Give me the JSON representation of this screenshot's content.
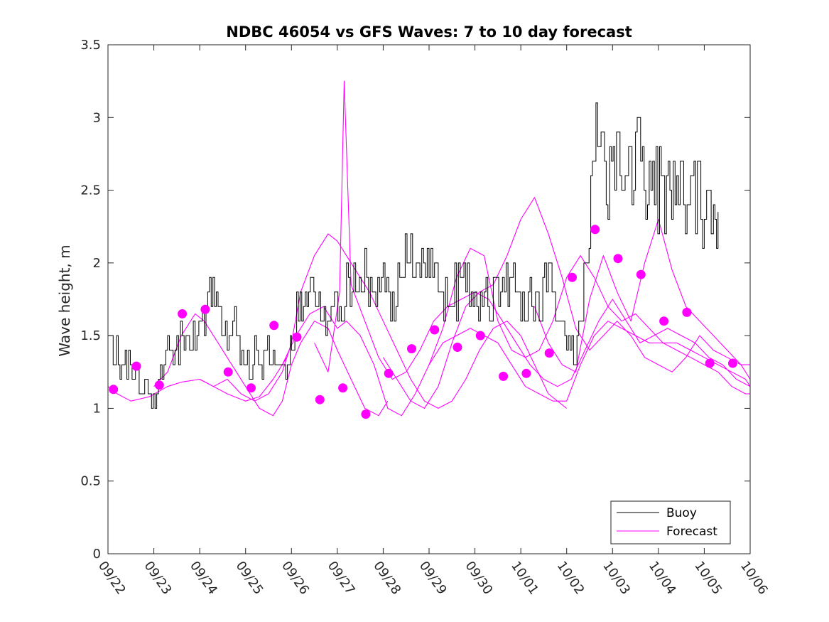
{
  "chart_data": {
    "type": "line",
    "title": "NDBC 46054 vs GFS Waves: 7 to 10 day forecast",
    "xlabel": "",
    "ylabel": "Wave height, m",
    "xlim": [
      0,
      14
    ],
    "ylim": [
      0,
      3.5
    ],
    "x_tick_labels": [
      "09/22",
      "09/23",
      "09/24",
      "09/25",
      "09/26",
      "09/27",
      "09/28",
      "09/29",
      "09/30",
      "10/01",
      "10/02",
      "10/03",
      "10/04",
      "10/05",
      "10/06"
    ],
    "y_ticks": [
      0,
      0.5,
      1,
      1.5,
      2,
      2.5,
      3,
      3.5
    ],
    "y_tick_labels": [
      "0",
      "0.5",
      "1",
      "1.5",
      "2",
      "2.5",
      "3",
      "3.5"
    ],
    "colors": {
      "buoy": "#000000",
      "forecast": "#ff00ff",
      "axes": "#262626",
      "background": "#ffffff"
    },
    "legend": {
      "position": "bottom-right",
      "entries": [
        {
          "label": "Buoy",
          "color": "#000000"
        },
        {
          "label": "Forecast",
          "color": "#ff00ff"
        }
      ]
    },
    "buoy_anchors": [
      [
        0.0,
        1.45
      ],
      [
        0.15,
        1.4
      ],
      [
        0.3,
        1.35
      ],
      [
        0.45,
        1.25
      ],
      [
        0.6,
        1.2
      ],
      [
        0.8,
        1.12
      ],
      [
        0.95,
        1.05
      ],
      [
        1.1,
        1.2
      ],
      [
        1.3,
        1.45
      ],
      [
        1.5,
        1.42
      ],
      [
        1.7,
        1.48
      ],
      [
        1.9,
        1.5
      ],
      [
        2.1,
        1.62
      ],
      [
        2.25,
        1.85
      ],
      [
        2.4,
        1.65
      ],
      [
        2.6,
        1.5
      ],
      [
        2.8,
        1.55
      ],
      [
        3.0,
        1.3
      ],
      [
        3.2,
        1.35
      ],
      [
        3.4,
        1.32
      ],
      [
        3.6,
        1.4
      ],
      [
        3.8,
        1.25
      ],
      [
        3.95,
        1.3
      ],
      [
        4.0,
        1.45
      ],
      [
        4.15,
        1.72
      ],
      [
        4.3,
        1.78
      ],
      [
        4.45,
        1.8
      ],
      [
        4.6,
        1.85
      ],
      [
        4.75,
        1.55
      ],
      [
        4.9,
        1.7
      ],
      [
        5.05,
        1.6
      ],
      [
        5.2,
        1.85
      ],
      [
        5.4,
        1.95
      ],
      [
        5.6,
        1.9
      ],
      [
        5.8,
        1.85
      ],
      [
        6.0,
        1.95
      ],
      [
        6.2,
        1.65
      ],
      [
        6.4,
        1.95
      ],
      [
        6.6,
        2.05
      ],
      [
        6.8,
        1.95
      ],
      [
        7.0,
        2.05
      ],
      [
        7.2,
        1.9
      ],
      [
        7.4,
        1.8
      ],
      [
        7.6,
        1.8
      ],
      [
        7.8,
        1.85
      ],
      [
        8.0,
        1.7
      ],
      [
        8.2,
        1.9
      ],
      [
        8.4,
        1.75
      ],
      [
        8.6,
        1.8
      ],
      [
        8.8,
        1.9
      ],
      [
        9.0,
        1.75
      ],
      [
        9.2,
        1.85
      ],
      [
        9.4,
        1.7
      ],
      [
        9.6,
        1.9
      ],
      [
        9.8,
        1.6
      ],
      [
        10.0,
        1.5
      ],
      [
        10.15,
        1.4
      ],
      [
        10.3,
        1.55
      ],
      [
        10.45,
        2.2
      ],
      [
        10.6,
        2.8
      ],
      [
        10.75,
        2.9
      ],
      [
        10.9,
        2.6
      ],
      [
        11.05,
        2.75
      ],
      [
        11.2,
        2.7
      ],
      [
        11.35,
        2.55
      ],
      [
        11.5,
        2.85
      ],
      [
        11.65,
        2.6
      ],
      [
        11.8,
        2.45
      ],
      [
        11.95,
        2.5
      ],
      [
        12.1,
        2.45
      ],
      [
        12.25,
        2.55
      ],
      [
        12.4,
        2.65
      ],
      [
        12.55,
        2.45
      ],
      [
        12.7,
        2.35
      ],
      [
        12.85,
        2.5
      ],
      [
        13.0,
        2.3
      ],
      [
        13.1,
        2.35
      ],
      [
        13.2,
        2.5
      ],
      [
        13.3,
        2.35
      ]
    ],
    "forecast_series": [
      {
        "name": "forecast-a",
        "x": [
          0,
          0.2,
          0.5,
          0.9,
          1.3,
          1.6,
          2.0,
          2.3,
          2.6,
          3.0,
          3.3,
          3.6,
          3.9
        ],
        "values": [
          1.15,
          1.1,
          1.05,
          1.08,
          1.15,
          1.18,
          1.2,
          1.15,
          1.1,
          1.05,
          1.08,
          1.2,
          1.35
        ]
      },
      {
        "name": "forecast-b",
        "x": [
          1.0,
          1.3,
          1.6,
          1.9,
          2.1,
          2.4,
          2.7,
          3.0,
          3.3,
          3.6,
          3.8,
          4.0,
          4.2,
          4.5,
          4.8,
          5.0,
          5.3,
          5.6,
          5.9,
          6.1
        ],
        "values": [
          1.15,
          1.25,
          1.5,
          1.65,
          1.6,
          1.45,
          1.3,
          1.15,
          1.0,
          0.95,
          1.05,
          1.3,
          1.45,
          1.6,
          1.55,
          1.4,
          1.2,
          1.0,
          0.95,
          1.05
        ]
      },
      {
        "name": "forecast-c",
        "x": [
          2.0,
          2.3,
          2.6,
          2.9,
          3.2,
          3.5,
          3.8,
          4.0,
          4.2,
          4.5,
          4.8,
          5.0,
          5.3,
          5.7,
          6.0,
          6.3,
          6.6,
          6.9,
          7.2,
          7.5,
          7.8,
          8.1,
          8.4,
          8.7,
          9.0,
          9.3,
          9.6,
          10.0
        ],
        "values": [
          1.2,
          1.15,
          1.2,
          1.1,
          1.05,
          1.1,
          1.25,
          1.45,
          1.8,
          2.05,
          2.2,
          2.15,
          2.0,
          1.8,
          1.6,
          1.4,
          1.2,
          1.05,
          1.0,
          1.05,
          1.2,
          1.4,
          1.55,
          1.6,
          1.5,
          1.3,
          1.1,
          1.0
        ]
      },
      {
        "name": "forecast-d",
        "x": [
          3.8,
          4.1,
          4.4,
          4.7,
          5.0,
          5.2,
          5.5,
          5.8,
          6.1,
          6.4,
          6.7,
          7.0,
          7.3,
          7.6,
          7.9,
          8.2,
          8.5,
          8.8,
          9.1,
          9.4,
          9.7,
          10.0,
          10.3,
          10.6,
          10.9,
          11.2,
          11.5,
          11.8,
          12.1,
          12.4,
          12.7,
          13.0,
          13.3,
          13.6,
          13.9,
          14.0
        ],
        "values": [
          1.3,
          1.5,
          1.65,
          1.7,
          1.55,
          1.6,
          1.5,
          1.3,
          1.0,
          0.95,
          1.1,
          1.3,
          1.45,
          1.5,
          1.55,
          1.5,
          1.45,
          1.3,
          1.15,
          1.1,
          1.05,
          1.05,
          1.3,
          1.5,
          1.6,
          1.55,
          1.5,
          1.45,
          1.45,
          1.4,
          1.35,
          1.3,
          1.25,
          1.15,
          1.1,
          1.1
        ]
      },
      {
        "name": "forecast-e",
        "x": [
          4.5,
          4.8,
          5.05,
          5.15,
          5.3,
          5.6,
          5.9,
          6.2,
          6.5,
          6.8,
          7.1,
          7.4,
          7.7,
          8.0,
          8.3,
          8.6,
          8.9,
          9.2,
          9.5,
          9.8,
          10.1,
          10.4,
          10.7,
          11.0,
          11.3,
          11.6,
          11.9,
          12.2,
          12.5,
          12.8,
          13.1,
          13.4,
          13.7,
          14.0
        ],
        "values": [
          1.45,
          1.25,
          1.8,
          3.25,
          1.85,
          1.6,
          1.35,
          1.2,
          1.25,
          1.4,
          1.6,
          1.7,
          1.75,
          1.8,
          1.75,
          1.6,
          1.45,
          1.3,
          1.2,
          1.15,
          1.2,
          1.4,
          1.6,
          1.75,
          1.6,
          1.45,
          1.5,
          1.55,
          1.5,
          1.45,
          1.35,
          1.3,
          1.2,
          1.15
        ]
      },
      {
        "name": "forecast-f",
        "x": [
          6.0,
          6.3,
          6.6,
          6.9,
          7.2,
          7.5,
          7.8,
          8.1,
          8.4,
          8.7,
          9.0,
          9.3,
          9.6,
          9.9,
          10.2,
          10.5,
          10.8,
          11.1,
          11.4,
          11.7,
          12.0,
          12.3,
          12.6,
          12.9,
          13.2,
          13.5,
          13.8,
          14.0
        ],
        "values": [
          1.35,
          1.2,
          1.05,
          1.0,
          1.15,
          1.45,
          1.7,
          1.8,
          1.85,
          2.05,
          2.3,
          2.45,
          2.2,
          1.9,
          1.55,
          1.4,
          1.5,
          1.6,
          1.5,
          1.35,
          1.3,
          1.25,
          1.35,
          1.5,
          1.4,
          1.35,
          1.3,
          1.3
        ]
      },
      {
        "name": "forecast-g",
        "x": [
          7.0,
          7.3,
          7.6,
          7.9,
          8.2,
          8.5,
          8.8,
          9.1,
          9.4,
          9.7,
          10.0,
          10.3,
          10.6,
          10.9,
          11.2,
          11.5,
          11.8,
          12.1,
          12.4,
          12.7,
          13.0,
          13.3,
          13.6,
          13.9,
          14.0
        ],
        "values": [
          1.3,
          1.55,
          1.9,
          2.1,
          2.05,
          1.6,
          1.4,
          1.35,
          1.4,
          1.6,
          1.9,
          2.05,
          1.9,
          1.7,
          1.6,
          1.65,
          1.55,
          1.45,
          1.45,
          1.4,
          1.35,
          1.3,
          1.25,
          1.2,
          1.15
        ]
      },
      {
        "name": "forecast-h",
        "x": [
          9.3,
          9.6,
          9.9,
          10.2,
          10.5,
          10.8,
          11.1,
          11.4,
          11.7,
          12.0,
          12.3,
          12.6,
          12.9,
          13.2,
          13.5,
          13.8,
          14.0
        ],
        "values": [
          1.7,
          1.45,
          1.3,
          1.25,
          1.75,
          2.05,
          1.8,
          1.6,
          2.0,
          2.3,
          1.95,
          1.7,
          1.6,
          1.5,
          1.4,
          1.3,
          1.2
        ]
      }
    ],
    "forecast_markers": {
      "x": [
        0.12,
        0.62,
        1.12,
        1.62,
        2.12,
        2.62,
        3.12,
        3.62,
        4.12,
        4.62,
        5.12,
        5.62,
        6.12,
        6.62,
        7.12,
        7.62,
        8.12,
        8.62,
        9.12,
        9.62,
        10.12,
        10.62,
        11.12,
        11.62,
        12.12,
        12.62,
        13.12,
        13.62
      ],
      "values": [
        1.13,
        1.29,
        1.16,
        1.65,
        1.68,
        1.25,
        1.14,
        1.57,
        1.49,
        1.06,
        1.14,
        0.96,
        1.24,
        1.41,
        1.54,
        1.42,
        1.5,
        1.22,
        1.24,
        1.38,
        1.9,
        2.23,
        2.03,
        1.92,
        1.6,
        1.66,
        1.31,
        1.31
      ]
    }
  }
}
